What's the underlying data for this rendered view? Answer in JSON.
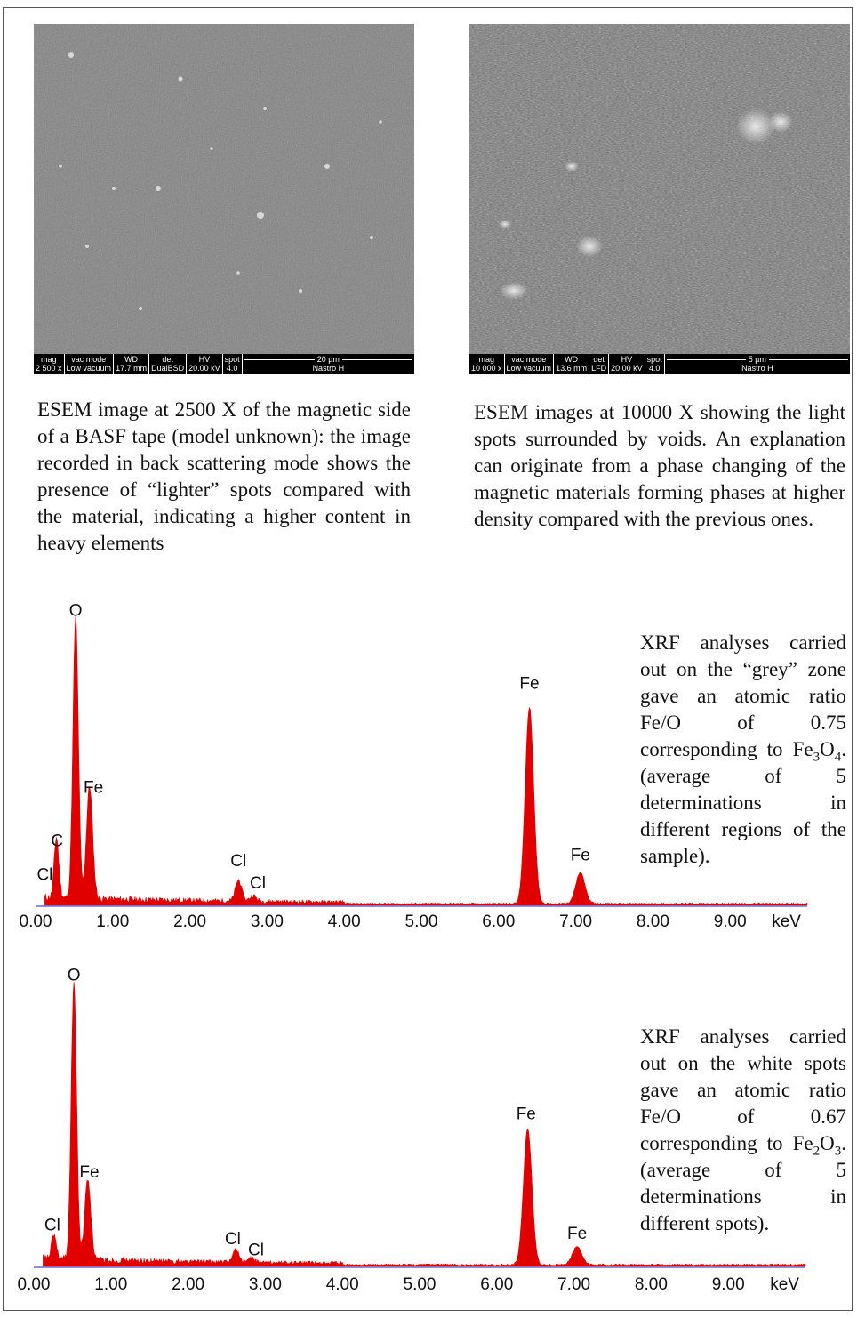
{
  "esem_left": {
    "databar": {
      "mag_label": "mag",
      "mag_value": "2 500 x",
      "vac_label": "vac mode",
      "vac_value": "Low vacuum",
      "wd_label": "WD",
      "wd_value": "17.7 mm",
      "det_label": "det",
      "det_value": "DualBSD",
      "hv_label": "HV",
      "hv_value": "20.00 kV",
      "spot_label": "spot",
      "spot_value": "4.0",
      "scale": "20 µm",
      "operator": "Nastro H"
    },
    "caption": "ESEM image at 2500 X of the magnetic side of a BASF tape (model unknown): the image recorded in back scattering mode shows the presence of “lighter” spots compared with the material, indicating a higher content in heavy elements"
  },
  "esem_right": {
    "databar": {
      "mag_label": "mag",
      "mag_value": "10 000 x",
      "vac_label": "vac mode",
      "vac_value": "Low vacuum",
      "wd_label": "WD",
      "wd_value": "13.6 mm",
      "det_label": "det",
      "det_value": "LFD",
      "hv_label": "HV",
      "hv_value": "20.00 kV",
      "spot_label": "spot",
      "spot_value": "4.0",
      "scale": "5 µm",
      "operator": "Nastro H"
    },
    "caption": "ESEM images at 10000 X showing the light spots surrounded by voids. An explanation can originate from a phase changing of the magnetic materials forming phases at higher density compared with the previous ones."
  },
  "xrf_grey": {
    "text_a": "XRF analyses carried out on the “grey” zone gave an atomic ratio Fe/O of 0.75 corresponding to Fe",
    "sub1": "3",
    "mid": "O",
    "sub2": "4",
    "text_b": ". (average of 5 determinations in different regions of the sample)."
  },
  "xrf_white": {
    "text_a": "XRF analyses carried out on the white spots gave an atomic ratio Fe/O of 0.67 corresponding to Fe",
    "sub1": "2",
    "mid": "O",
    "sub2": "3",
    "text_b": ". (average of 5 determinations in different spots)."
  },
  "colors": {
    "spectrum": "#e00000",
    "baseline": "#6a6ad0"
  },
  "chart_data": [
    {
      "type": "area",
      "xlabel": "keV",
      "xlim": [
        0,
        10
      ],
      "ylim": [
        0,
        1
      ],
      "ticks": [
        "0.00",
        "1.00",
        "2.00",
        "3.00",
        "4.00",
        "5.00",
        "6.00",
        "7.00",
        "8.00",
        "9.00"
      ],
      "peaks": [
        {
          "x": 0.26,
          "y": 0.09,
          "width": 0.025
        },
        {
          "x": 0.28,
          "y": 0.14,
          "width": 0.03
        },
        {
          "x": 0.52,
          "y": 1.0,
          "width": 0.035
        },
        {
          "x": 0.7,
          "y": 0.4,
          "width": 0.04
        },
        {
          "x": 2.63,
          "y": 0.075,
          "width": 0.04
        },
        {
          "x": 2.82,
          "y": 0.02,
          "width": 0.04
        },
        {
          "x": 6.4,
          "y": 0.7,
          "width": 0.055
        },
        {
          "x": 7.06,
          "y": 0.11,
          "width": 0.06
        }
      ],
      "labels": [
        {
          "text": "O",
          "x": 0.52,
          "y": 1.03
        },
        {
          "text": "Fe",
          "x": 0.75,
          "y": 0.4
        },
        {
          "text": "C",
          "x": 0.28,
          "y": 0.21
        },
        {
          "text": "Cl",
          "x": 0.12,
          "y": 0.09
        },
        {
          "text": "Cl",
          "x": 2.63,
          "y": 0.14
        },
        {
          "text": "Cl",
          "x": 2.88,
          "y": 0.06
        },
        {
          "text": "Fe",
          "x": 6.4,
          "y": 0.77
        },
        {
          "text": "Fe",
          "x": 7.06,
          "y": 0.16
        }
      ]
    },
    {
      "type": "area",
      "xlabel": "keV",
      "xlim": [
        0,
        10
      ],
      "ylim": [
        0,
        1
      ],
      "ticks": [
        "0.00",
        "1.00",
        "2.00",
        "3.00",
        "4.00",
        "5.00",
        "6.00",
        "7.00",
        "8.00",
        "9.00"
      ],
      "peaks": [
        {
          "x": 0.26,
          "y": 0.09,
          "width": 0.03
        },
        {
          "x": 0.52,
          "y": 1.0,
          "width": 0.035
        },
        {
          "x": 0.7,
          "y": 0.29,
          "width": 0.04
        },
        {
          "x": 2.62,
          "y": 0.045,
          "width": 0.04
        },
        {
          "x": 2.82,
          "y": 0.015,
          "width": 0.04
        },
        {
          "x": 6.4,
          "y": 0.49,
          "width": 0.055
        },
        {
          "x": 7.04,
          "y": 0.065,
          "width": 0.06
        }
      ],
      "labels": [
        {
          "text": "O",
          "x": 0.52,
          "y": 1.03
        },
        {
          "text": "Fe",
          "x": 0.72,
          "y": 0.32
        },
        {
          "text": "Cl",
          "x": 0.24,
          "y": 0.13
        },
        {
          "text": "Cl",
          "x": 2.58,
          "y": 0.08
        },
        {
          "text": "Cl",
          "x": 2.88,
          "y": 0.04
        },
        {
          "text": "Fe",
          "x": 6.38,
          "y": 0.53
        },
        {
          "text": "Fe",
          "x": 7.04,
          "y": 0.1
        }
      ]
    }
  ]
}
